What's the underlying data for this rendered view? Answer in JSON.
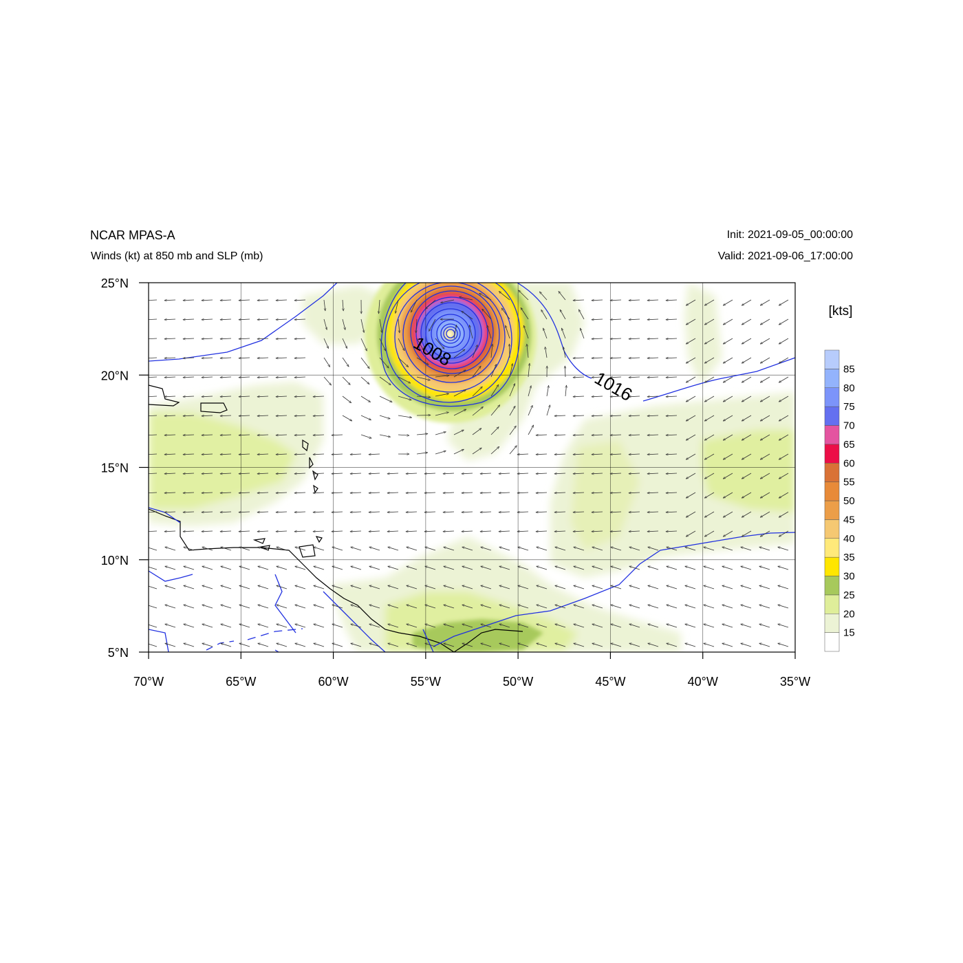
{
  "header": {
    "left_title": "NCAR MPAS-A",
    "left_subtitle": "Winds (kt) at 850 mb and SLP (mb)",
    "right_title": "Init: 2021-09-05_00:00:00",
    "right_subtitle": "Valid: 2021-09-06_17:00:00"
  },
  "map": {
    "lon_range": [
      -70,
      -35
    ],
    "lat_range": [
      5,
      25
    ],
    "lon_ticks": [
      {
        "value": -70,
        "label": "70°W"
      },
      {
        "value": -65,
        "label": "65°W"
      },
      {
        "value": -60,
        "label": "60°W"
      },
      {
        "value": -55,
        "label": "55°W"
      },
      {
        "value": -50,
        "label": "50°W"
      },
      {
        "value": -45,
        "label": "45°W"
      },
      {
        "value": -40,
        "label": "40°W"
      },
      {
        "value": -35,
        "label": "35°W"
      }
    ],
    "lat_ticks": [
      {
        "value": 25,
        "label": "25°N"
      },
      {
        "value": 20,
        "label": "20°N"
      },
      {
        "value": 15,
        "label": "15°N"
      },
      {
        "value": 10,
        "label": "10°N"
      },
      {
        "value": 5,
        "label": "5°N"
      }
    ],
    "gridlines": true,
    "storm_center": {
      "lon": -53.8,
      "lat": 22.2
    },
    "contour_labels": [
      {
        "text": "1008",
        "lon": -54.8,
        "lat": 21.0
      },
      {
        "text": "1016",
        "lon": -45.0,
        "lat": 19.1
      }
    ]
  },
  "colorbar": {
    "unit": "[kts]",
    "levels": [
      "15",
      "20",
      "25",
      "30",
      "35",
      "40",
      "45",
      "50",
      "55",
      "60",
      "65",
      "70",
      "75",
      "80",
      "85"
    ],
    "colors": [
      "#ffffff",
      "#ecf3d5",
      "#dfee9a",
      "#a7c95c",
      "#ffe600",
      "#ffe97a",
      "#f5c872",
      "#ec9e48",
      "#e88a38",
      "#d97236",
      "#ec0e47",
      "#e454a0",
      "#6470f0",
      "#7c94fa",
      "#93b3fc",
      "#b7ccfc"
    ]
  },
  "colors": {
    "slp_contour": "#2030e0",
    "coastline": "#000000",
    "vector": "#333333",
    "grid": "#000000"
  }
}
